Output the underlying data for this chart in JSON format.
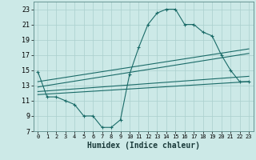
{
  "xlabel": "Humidex (Indice chaleur)",
  "xlim": [
    -0.5,
    23.5
  ],
  "ylim": [
    7,
    24
  ],
  "xticks": [
    0,
    1,
    2,
    3,
    4,
    5,
    6,
    7,
    8,
    9,
    10,
    11,
    12,
    13,
    14,
    15,
    16,
    17,
    18,
    19,
    20,
    21,
    22,
    23
  ],
  "yticks": [
    7,
    9,
    11,
    13,
    15,
    17,
    19,
    21,
    23
  ],
  "bg_color": "#cce9e7",
  "grid_color": "#aacfcd",
  "line_color": "#1a6b68",
  "line1_x": [
    0,
    1,
    2,
    3,
    4,
    5,
    6,
    7,
    8,
    9,
    10,
    11,
    12,
    13,
    14,
    15,
    16,
    17,
    18,
    19,
    20,
    21,
    22,
    23
  ],
  "line1_y": [
    14.8,
    11.5,
    11.5,
    11.0,
    10.5,
    9.0,
    9.0,
    7.5,
    7.5,
    8.5,
    14.5,
    18.0,
    21.0,
    22.5,
    23.0,
    23.0,
    21.0,
    21.0,
    20.0,
    19.5,
    17.0,
    15.0,
    13.5,
    13.5
  ],
  "line2_x": [
    0,
    23
  ],
  "line2_y": [
    11.8,
    13.5
  ],
  "line3_x": [
    0,
    23
  ],
  "line3_y": [
    12.2,
    14.2
  ],
  "line4_x": [
    0,
    23
  ],
  "line4_y": [
    12.8,
    17.2
  ],
  "line5_x": [
    0,
    23
  ],
  "line5_y": [
    13.5,
    17.8
  ]
}
